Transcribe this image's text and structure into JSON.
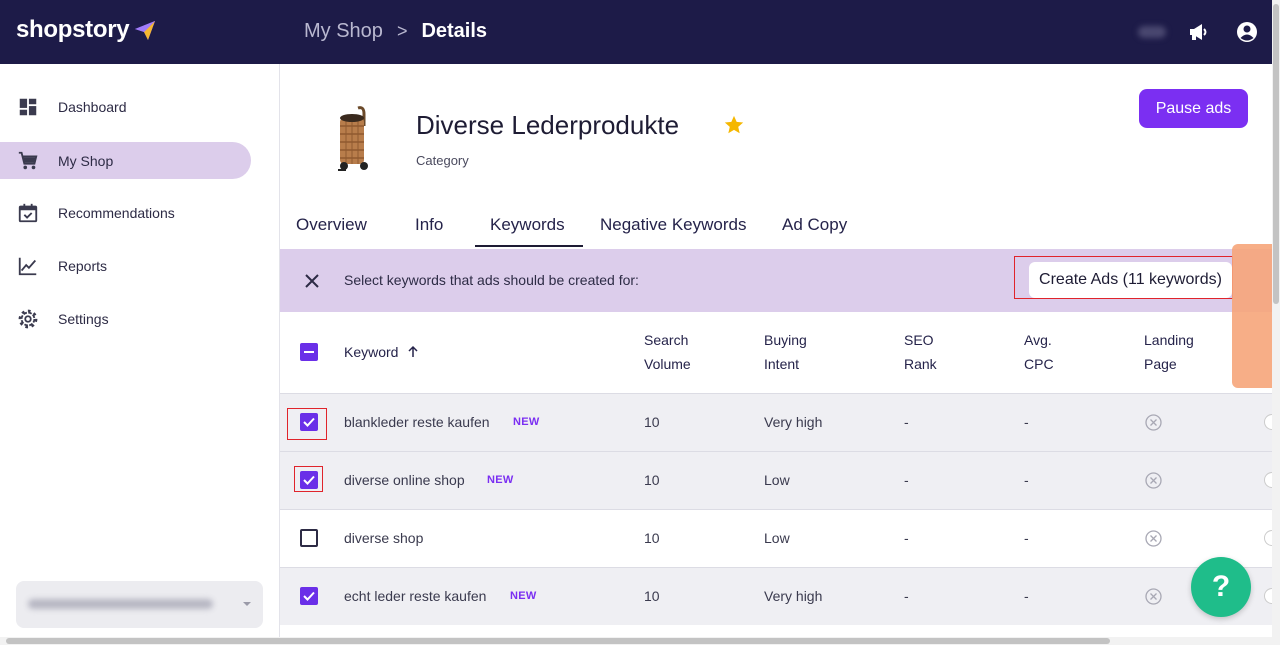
{
  "app": {
    "logo_text": "shopstory",
    "brand_color": "#1d1b48",
    "accent_color": "#7b2ff2"
  },
  "breadcrumb": {
    "root": "My Shop",
    "separator": ">",
    "current": "Details"
  },
  "topbar_icons": [
    "megaphone-icon",
    "account-circle-icon"
  ],
  "sidebar": {
    "items": [
      {
        "label": "Dashboard",
        "icon": "dashboard-icon",
        "active": false
      },
      {
        "label": "My Shop",
        "icon": "shopping-cart-icon",
        "active": true
      },
      {
        "label": "Recommendations",
        "icon": "calendar-check-icon",
        "active": false
      },
      {
        "label": "Reports",
        "icon": "line-chart-icon",
        "active": false
      },
      {
        "label": "Settings",
        "icon": "gear-icon",
        "active": false
      }
    ]
  },
  "product": {
    "title": "Diverse Lederprodukte",
    "subtitle": "Category",
    "favorite": true
  },
  "actions": {
    "pause_label": "Pause ads"
  },
  "tabs": [
    {
      "label": "Overview",
      "active": false
    },
    {
      "label": "Info",
      "active": false
    },
    {
      "label": "Keywords",
      "active": true
    },
    {
      "label": "Negative Keywords",
      "active": false
    },
    {
      "label": "Ad Copy",
      "active": false
    }
  ],
  "selection": {
    "prompt": "Select keywords that ads should be created for:",
    "create_label": "Create Ads (11 keywords)"
  },
  "table": {
    "headers": {
      "keyword": "Keyword",
      "search_volume": [
        "Search",
        "Volume"
      ],
      "buying_intent": [
        "Buying",
        "Intent"
      ],
      "seo_rank": [
        "SEO",
        "Rank"
      ],
      "avg_cpc": [
        "Avg.",
        "CPC"
      ],
      "landing_page": [
        "Landing",
        "Page"
      ]
    },
    "rows": [
      {
        "keyword": "blankleder reste kaufen",
        "badge": "NEW",
        "checked": true,
        "search_volume": "10",
        "buying_intent": "Very high",
        "seo_rank": "-",
        "avg_cpc": "-"
      },
      {
        "keyword": "diverse online shop",
        "badge": "NEW",
        "checked": true,
        "search_volume": "10",
        "buying_intent": "Low",
        "seo_rank": "-",
        "avg_cpc": "-"
      },
      {
        "keyword": "diverse shop",
        "badge": "",
        "checked": false,
        "search_volume": "10",
        "buying_intent": "Low",
        "seo_rank": "-",
        "avg_cpc": "-"
      },
      {
        "keyword": "echt leder reste kaufen",
        "badge": "NEW",
        "checked": true,
        "search_volume": "10",
        "buying_intent": "Very high",
        "seo_rank": "-",
        "avg_cpc": "-"
      }
    ]
  },
  "help": {
    "label": "?"
  }
}
